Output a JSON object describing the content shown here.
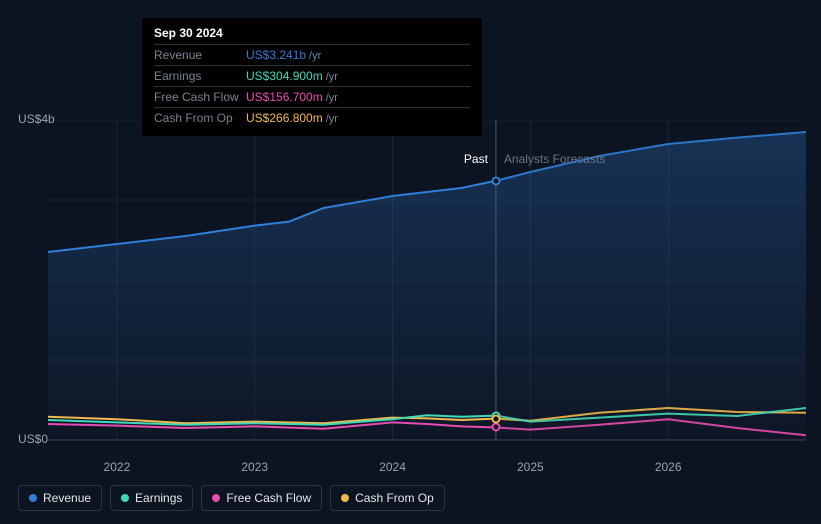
{
  "chart": {
    "type": "line-area",
    "background_color": "#0d1421",
    "grid_color": "#2a3441",
    "text_color": "#9aa3af",
    "yaxis": {
      "min": 0,
      "max": 4000,
      "labels": [
        {
          "v": 0,
          "text": "US$0"
        },
        {
          "v": 4000,
          "text": "US$4b"
        }
      ]
    },
    "xaxis": {
      "start": 2021.5,
      "end": 2027,
      "ticks": [
        2022,
        2023,
        2024,
        2025,
        2026
      ],
      "tick_labels": [
        "2022",
        "2023",
        "2024",
        "2025",
        "2026"
      ]
    },
    "divider_x": 2024.75,
    "past_label": "Past",
    "forecast_label": "Analysts Forecasts",
    "past_label_color": "#ffffff",
    "forecast_label_color": "#6b7685",
    "series": {
      "revenue": {
        "label": "Revenue",
        "color": "#2f7ed8",
        "area_fill": true,
        "data": [
          [
            2021.5,
            2350
          ],
          [
            2022,
            2450
          ],
          [
            2022.5,
            2550
          ],
          [
            2023,
            2680
          ],
          [
            2023.25,
            2730
          ],
          [
            2023.5,
            2900
          ],
          [
            2024,
            3050
          ],
          [
            2024.5,
            3150
          ],
          [
            2024.75,
            3241
          ],
          [
            2025,
            3350
          ],
          [
            2025.5,
            3550
          ],
          [
            2026,
            3700
          ],
          [
            2026.5,
            3780
          ],
          [
            2027,
            3850
          ]
        ]
      },
      "earnings": {
        "label": "Earnings",
        "color": "#41d9b5",
        "data": [
          [
            2021.5,
            250
          ],
          [
            2022,
            220
          ],
          [
            2022.5,
            190
          ],
          [
            2023,
            210
          ],
          [
            2023.5,
            190
          ],
          [
            2024,
            260
          ],
          [
            2024.25,
            310
          ],
          [
            2024.5,
            290
          ],
          [
            2024.75,
            305
          ],
          [
            2025,
            230
          ],
          [
            2025.5,
            280
          ],
          [
            2026,
            330
          ],
          [
            2026.5,
            300
          ],
          [
            2027,
            400
          ]
        ]
      },
      "fcf": {
        "label": "Free Cash Flow",
        "color": "#e64db2",
        "data": [
          [
            2021.5,
            200
          ],
          [
            2022,
            180
          ],
          [
            2022.5,
            150
          ],
          [
            2023,
            170
          ],
          [
            2023.5,
            140
          ],
          [
            2024,
            220
          ],
          [
            2024.25,
            200
          ],
          [
            2024.5,
            170
          ],
          [
            2024.75,
            157
          ],
          [
            2025,
            130
          ],
          [
            2025.5,
            190
          ],
          [
            2026,
            260
          ],
          [
            2026.5,
            150
          ],
          [
            2027,
            60
          ]
        ]
      },
      "cfo": {
        "label": "Cash From Op",
        "color": "#f2b84b",
        "data": [
          [
            2021.5,
            290
          ],
          [
            2022,
            260
          ],
          [
            2022.5,
            210
          ],
          [
            2023,
            230
          ],
          [
            2023.5,
            210
          ],
          [
            2024,
            280
          ],
          [
            2024.25,
            270
          ],
          [
            2024.5,
            250
          ],
          [
            2024.75,
            267
          ],
          [
            2025,
            240
          ],
          [
            2025.5,
            340
          ],
          [
            2026,
            400
          ],
          [
            2026.5,
            350
          ],
          [
            2027,
            340
          ]
        ]
      }
    },
    "highlight": {
      "x": 2024.75,
      "title": "Sep 30 2024",
      "unit": "/yr",
      "rows": [
        {
          "key": "revenue",
          "label": "Revenue",
          "value": "US$3.241b"
        },
        {
          "key": "earnings",
          "label": "Earnings",
          "value": "US$304.900m"
        },
        {
          "key": "fcf",
          "label": "Free Cash Flow",
          "value": "US$156.700m"
        },
        {
          "key": "cfo",
          "label": "Cash From Op",
          "value": "US$266.800m"
        }
      ]
    }
  }
}
